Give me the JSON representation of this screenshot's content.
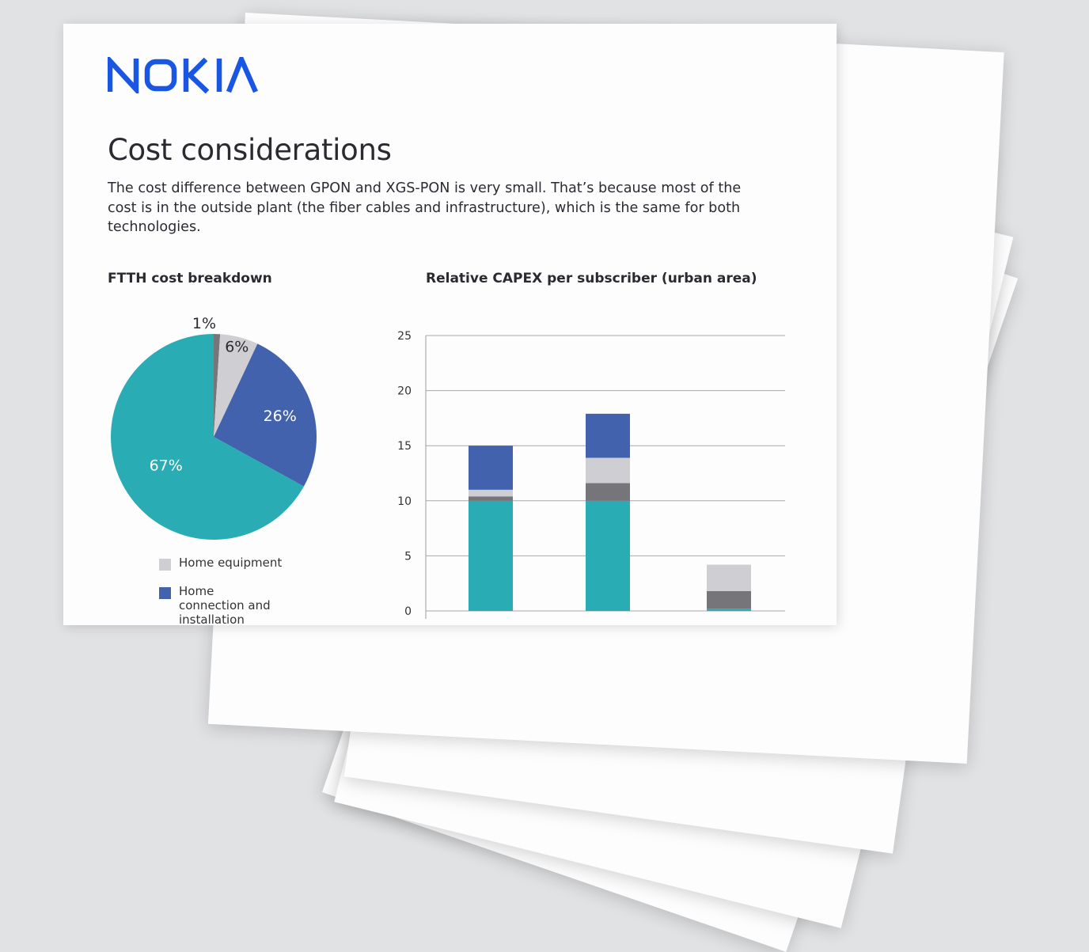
{
  "document": {
    "brand": "NOKIA",
    "title": "Cost considerations",
    "intro": "The cost difference between GPON and XGS-PON is very small. That’s because most of the cost is in the outside plant (the fiber cables and infrastructure), which is the same for both technologies."
  },
  "colors": {
    "brand_blue": "#124191",
    "logo_blue": "#1a56e4",
    "teal": "#2aacb4",
    "dark_gray": "#75757a",
    "light_gray": "#cfcfd3",
    "blue": "#4262ae"
  },
  "legend": [
    {
      "label": "Home equipment",
      "color": "#cfcfd3"
    },
    {
      "label": "Home connection and installation",
      "color": "#4262ae"
    }
  ],
  "chart_data": [
    {
      "type": "pie",
      "title": "FTTH cost breakdown",
      "slices": [
        {
          "label": "1%",
          "value": 1,
          "color": "#75757a"
        },
        {
          "label": "6%",
          "value": 6,
          "color": "#cfcfd3"
        },
        {
          "label": "26%",
          "value": 26,
          "color": "#4262ae"
        },
        {
          "label": "67%",
          "value": 67,
          "color": "#2aacb4"
        }
      ]
    },
    {
      "type": "bar",
      "stacked": true,
      "title": "Relative CAPEX per subscriber (urban area)",
      "ylim": [
        0,
        25
      ],
      "yticks": [
        0,
        5,
        10,
        15,
        20,
        25
      ],
      "grid": true,
      "bars": [
        {
          "segments": [
            {
              "value": 10,
              "color": "#2aacb4"
            },
            {
              "value": 0.4,
              "color": "#75757a"
            },
            {
              "value": 0.6,
              "color": "#cfcfd3"
            },
            {
              "value": 4,
              "color": "#4262ae"
            }
          ]
        },
        {
          "segments": [
            {
              "value": 10,
              "color": "#2aacb4"
            },
            {
              "value": 1.6,
              "color": "#75757a"
            },
            {
              "value": 2.3,
              "color": "#cfcfd3"
            },
            {
              "value": 4,
              "color": "#4262ae"
            }
          ]
        },
        {
          "segments": [
            {
              "value": 0.2,
              "color": "#2aacb4"
            },
            {
              "value": 1.6,
              "color": "#75757a"
            },
            {
              "value": 2.4,
              "color": "#cfcfd3"
            }
          ]
        }
      ]
    }
  ]
}
